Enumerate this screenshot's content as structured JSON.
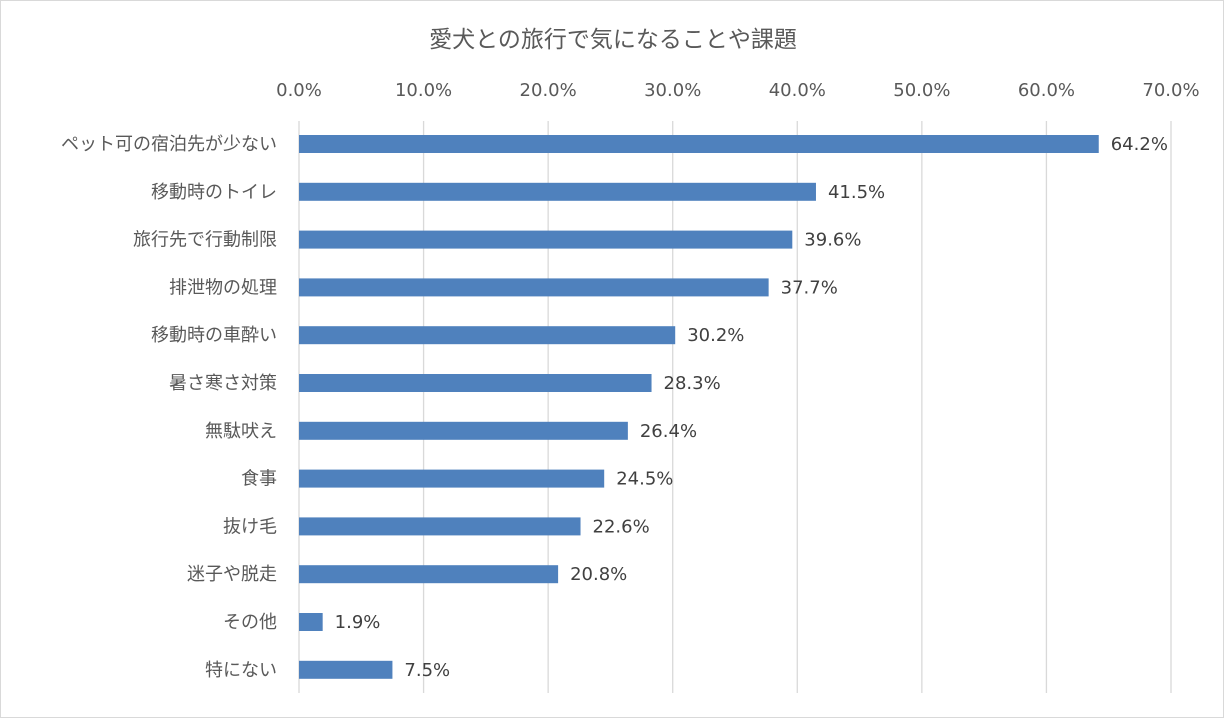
{
  "chart_data": {
    "type": "bar",
    "orientation": "horizontal",
    "title": "愛犬との旅行で気になることや課題",
    "categories": [
      "ペット可の宿泊先が少ない",
      "移動時のトイレ",
      "旅行先で行動制限",
      "排泄物の処理",
      "移動時の車酔い",
      "暑さ寒さ対策",
      "無駄吠え",
      "食事",
      "抜け毛",
      "迷子や脱走",
      "その他",
      "特にない"
    ],
    "values": [
      64.2,
      41.5,
      39.6,
      37.7,
      30.2,
      28.3,
      26.4,
      24.5,
      22.6,
      20.8,
      1.9,
      7.5
    ],
    "data_labels": [
      "64.2%",
      "41.5%",
      "39.6%",
      "37.7%",
      "30.2%",
      "28.3%",
      "26.4%",
      "24.5%",
      "22.6%",
      "20.8%",
      "1.9%",
      "7.5%"
    ],
    "x_ticks": [
      "0.0%",
      "10.0%",
      "20.0%",
      "30.0%",
      "40.0%",
      "50.0%",
      "60.0%",
      "70.0%"
    ],
    "xlim": [
      0,
      70
    ],
    "x_axis_position": "top",
    "grid": true,
    "legend": "none",
    "bar_color": "#4f81bd"
  }
}
